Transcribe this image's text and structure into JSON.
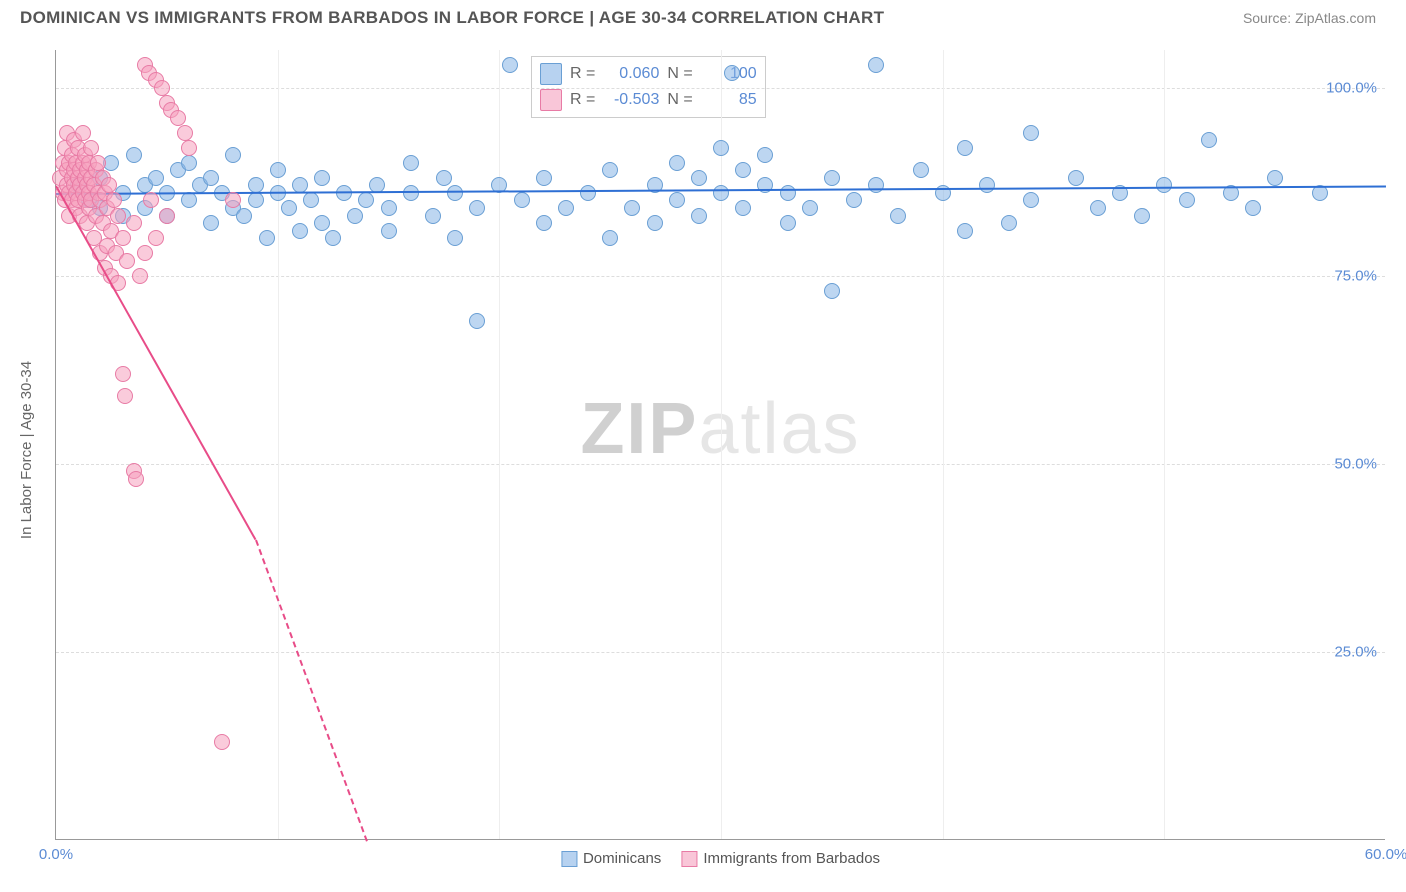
{
  "header": {
    "title": "DOMINICAN VS IMMIGRANTS FROM BARBADOS IN LABOR FORCE | AGE 30-34 CORRELATION CHART",
    "source": "Source: ZipAtlas.com"
  },
  "chart": {
    "type": "scatter",
    "y_axis_label": "In Labor Force | Age 30-34",
    "xlim": [
      0,
      60
    ],
    "ylim": [
      0,
      105
    ],
    "x_ticks": [
      0,
      10,
      20,
      30,
      40,
      50,
      60
    ],
    "x_tick_labels": [
      "0.0%",
      "",
      "",
      "",
      "",
      "",
      "60.0%"
    ],
    "y_ticks": [
      25,
      50,
      75,
      100
    ],
    "y_tick_labels": [
      "25.0%",
      "50.0%",
      "75.0%",
      "100.0%"
    ],
    "grid_color": "#dddddd",
    "background_color": "#ffffff",
    "series": [
      {
        "name": "Dominicans",
        "color": "#87b4e6",
        "stroke": "#6a9fd4",
        "r_value": "0.060",
        "n_value": "100",
        "trend": {
          "x1": 0,
          "y1": 86,
          "x2": 60,
          "y2": 87,
          "color": "#2e6fd4"
        },
        "points": [
          [
            1,
            87
          ],
          [
            1.5,
            85
          ],
          [
            2,
            88
          ],
          [
            2,
            84
          ],
          [
            2.5,
            90
          ],
          [
            3,
            86
          ],
          [
            3,
            83
          ],
          [
            3.5,
            91
          ],
          [
            4,
            87
          ],
          [
            4,
            84
          ],
          [
            4.5,
            88
          ],
          [
            5,
            86
          ],
          [
            5,
            83
          ],
          [
            5.5,
            89
          ],
          [
            6,
            85
          ],
          [
            6,
            90
          ],
          [
            6.5,
            87
          ],
          [
            7,
            82
          ],
          [
            7,
            88
          ],
          [
            7.5,
            86
          ],
          [
            8,
            84
          ],
          [
            8,
            91
          ],
          [
            8.5,
            83
          ],
          [
            9,
            87
          ],
          [
            9,
            85
          ],
          [
            9.5,
            80
          ],
          [
            10,
            86
          ],
          [
            10,
            89
          ],
          [
            10.5,
            84
          ],
          [
            11,
            81
          ],
          [
            11,
            87
          ],
          [
            11.5,
            85
          ],
          [
            12,
            82
          ],
          [
            12,
            88
          ],
          [
            12.5,
            80
          ],
          [
            13,
            86
          ],
          [
            13.5,
            83
          ],
          [
            14,
            85
          ],
          [
            14.5,
            87
          ],
          [
            15,
            81
          ],
          [
            15,
            84
          ],
          [
            16,
            90
          ],
          [
            16,
            86
          ],
          [
            17,
            83
          ],
          [
            17.5,
            88
          ],
          [
            18,
            80
          ],
          [
            18,
            86
          ],
          [
            19,
            69
          ],
          [
            19,
            84
          ],
          [
            20,
            87
          ],
          [
            20.5,
            103
          ],
          [
            21,
            85
          ],
          [
            22,
            82
          ],
          [
            22,
            88
          ],
          [
            23,
            84
          ],
          [
            24,
            86
          ],
          [
            25,
            89
          ],
          [
            25,
            80
          ],
          [
            26,
            84
          ],
          [
            27,
            87
          ],
          [
            27,
            82
          ],
          [
            28,
            85
          ],
          [
            28,
            90
          ],
          [
            29,
            88
          ],
          [
            29,
            83
          ],
          [
            30,
            86
          ],
          [
            30,
            92
          ],
          [
            30.5,
            102
          ],
          [
            31,
            84
          ],
          [
            31,
            89
          ],
          [
            32,
            87
          ],
          [
            32,
            91
          ],
          [
            33,
            82
          ],
          [
            33,
            86
          ],
          [
            34,
            84
          ],
          [
            35,
            73
          ],
          [
            35,
            88
          ],
          [
            36,
            85
          ],
          [
            37,
            103
          ],
          [
            37,
            87
          ],
          [
            38,
            83
          ],
          [
            39,
            89
          ],
          [
            40,
            86
          ],
          [
            41,
            92
          ],
          [
            41,
            81
          ],
          [
            42,
            87
          ],
          [
            43,
            82
          ],
          [
            44,
            94
          ],
          [
            44,
            85
          ],
          [
            46,
            88
          ],
          [
            47,
            84
          ],
          [
            48,
            86
          ],
          [
            49,
            83
          ],
          [
            50,
            87
          ],
          [
            51,
            85
          ],
          [
            52,
            93
          ],
          [
            53,
            86
          ],
          [
            54,
            84
          ],
          [
            55,
            88
          ],
          [
            57,
            86
          ]
        ]
      },
      {
        "name": "Immigrants from Barbados",
        "color": "#f5a0be",
        "stroke": "#e87ba5",
        "r_value": "-0.503",
        "n_value": "85",
        "trend": {
          "x1": 0,
          "y1": 87,
          "x2": 9,
          "y2": 40,
          "color": "#e84c88",
          "dash_extend_x": 14,
          "dash_extend_y": 0
        },
        "points": [
          [
            0.2,
            88
          ],
          [
            0.3,
            90
          ],
          [
            0.3,
            86
          ],
          [
            0.4,
            92
          ],
          [
            0.4,
            85
          ],
          [
            0.5,
            89
          ],
          [
            0.5,
            87
          ],
          [
            0.5,
            94
          ],
          [
            0.6,
            86
          ],
          [
            0.6,
            90
          ],
          [
            0.6,
            83
          ],
          [
            0.7,
            88
          ],
          [
            0.7,
            91
          ],
          [
            0.7,
            85
          ],
          [
            0.8,
            93
          ],
          [
            0.8,
            87
          ],
          [
            0.8,
            89
          ],
          [
            0.9,
            86
          ],
          [
            0.9,
            90
          ],
          [
            0.9,
            84
          ],
          [
            1.0,
            88
          ],
          [
            1.0,
            92
          ],
          [
            1.0,
            85
          ],
          [
            1.1,
            87
          ],
          [
            1.1,
            89
          ],
          [
            1.1,
            83
          ],
          [
            1.2,
            90
          ],
          [
            1.2,
            86
          ],
          [
            1.2,
            94
          ],
          [
            1.3,
            88
          ],
          [
            1.3,
            85
          ],
          [
            1.3,
            91
          ],
          [
            1.4,
            87
          ],
          [
            1.4,
            82
          ],
          [
            1.4,
            89
          ],
          [
            1.5,
            86
          ],
          [
            1.5,
            90
          ],
          [
            1.5,
            84
          ],
          [
            1.6,
            88
          ],
          [
            1.6,
            92
          ],
          [
            1.6,
            85
          ],
          [
            1.7,
            87
          ],
          [
            1.7,
            80
          ],
          [
            1.8,
            89
          ],
          [
            1.8,
            83
          ],
          [
            1.9,
            86
          ],
          [
            1.9,
            90
          ],
          [
            2.0,
            85
          ],
          [
            2.0,
            78
          ],
          [
            2.1,
            88
          ],
          [
            2.1,
            82
          ],
          [
            2.2,
            76
          ],
          [
            2.2,
            86
          ],
          [
            2.3,
            84
          ],
          [
            2.3,
            79
          ],
          [
            2.4,
            87
          ],
          [
            2.5,
            81
          ],
          [
            2.5,
            75
          ],
          [
            2.6,
            85
          ],
          [
            2.7,
            78
          ],
          [
            2.8,
            83
          ],
          [
            2.8,
            74
          ],
          [
            3.0,
            80
          ],
          [
            3.0,
            62
          ],
          [
            3.1,
            59
          ],
          [
            3.2,
            77
          ],
          [
            3.5,
            82
          ],
          [
            3.5,
            49
          ],
          [
            3.6,
            48
          ],
          [
            3.8,
            75
          ],
          [
            4.0,
            78
          ],
          [
            4.0,
            103
          ],
          [
            4.2,
            102
          ],
          [
            4.3,
            85
          ],
          [
            4.5,
            101
          ],
          [
            4.5,
            80
          ],
          [
            4.8,
            100
          ],
          [
            5.0,
            98
          ],
          [
            5.0,
            83
          ],
          [
            5.2,
            97
          ],
          [
            5.5,
            96
          ],
          [
            5.8,
            94
          ],
          [
            6.0,
            92
          ],
          [
            7.5,
            13
          ],
          [
            8.0,
            85
          ]
        ]
      }
    ],
    "legend_bottom": {
      "item1": "Dominicans",
      "item2": "Immigrants from Barbados"
    },
    "legend_top": {
      "r_label": "R =",
      "n_label": "N ="
    },
    "watermark": {
      "part1": "ZIP",
      "part2": "atlas"
    }
  }
}
